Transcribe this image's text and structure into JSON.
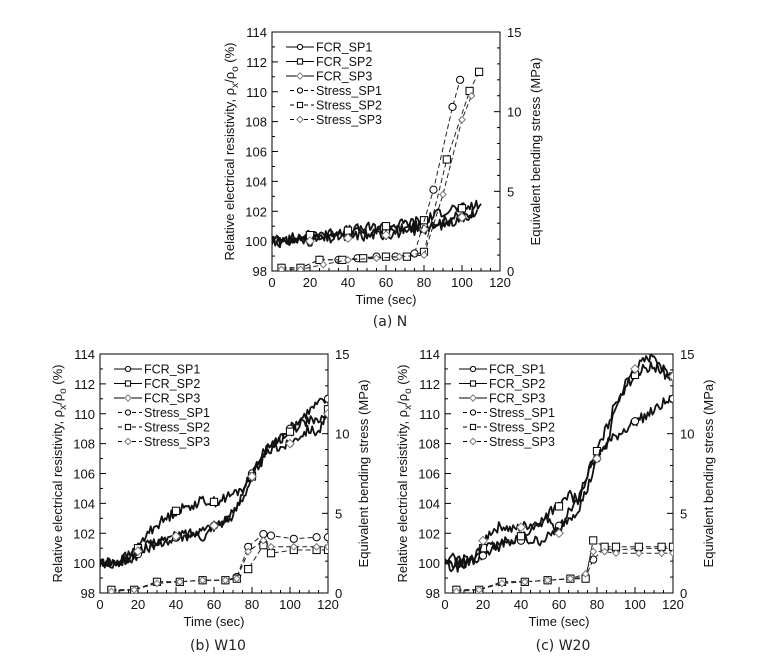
{
  "figure": {
    "x_label": "Time (sec)",
    "y_label_left_prefix": "Relative electrical resistivity, ",
    "y_label_left_rho": "ρ",
    "y_label_left_sub_x": "x",
    "y_label_left_slash": "/",
    "y_label_left_sub_o": "o",
    "y_label_left_suffix": " (%)",
    "y_label_right": "Equivalent bending stress (MPa)",
    "legend": [
      "FCR_SP1",
      "FCR_SP2",
      "FCR_SP3",
      "Stress_SP1",
      "Stress_SP2",
      "Stress_SP3"
    ],
    "colors": {
      "fcr_line": "#111111",
      "stress_line": "#222222",
      "sp3_marker": "#777777"
    }
  },
  "chart_data": [
    {
      "type": "line",
      "caption": "(a)  N",
      "xlabel": "Time (sec)",
      "ylabel": "Relative electrical resistivity, ρx/ρo (%)",
      "ylabel_right": "Equivalent bending stress (MPa)",
      "xlim": [
        0,
        120
      ],
      "ylim": [
        98,
        114
      ],
      "ylim_right": [
        0,
        15
      ],
      "xticks": [
        0,
        20,
        40,
        60,
        80,
        100,
        120
      ],
      "yticks": [
        98,
        100,
        102,
        104,
        106,
        108,
        110,
        112,
        114
      ],
      "yticks_right": [
        0,
        5,
        10,
        15
      ],
      "legend_position": "top-left",
      "series": [
        {
          "name": "FCR_SP1",
          "axis": "left",
          "x": [
            0,
            5,
            10,
            15,
            20,
            25,
            30,
            35,
            40,
            45,
            50,
            55,
            60,
            65,
            70,
            75,
            80,
            85,
            90,
            95,
            100,
            105,
            108
          ],
          "y": [
            100,
            100,
            100.1,
            100.2,
            100.1,
            100.4,
            100.3,
            100.5,
            100.4,
            100.6,
            100.5,
            100.7,
            100.6,
            100.8,
            100.8,
            101.0,
            101.0,
            101.2,
            101.3,
            101.6,
            101.6,
            101.9,
            102.1
          ]
        },
        {
          "name": "FCR_SP2",
          "axis": "left",
          "x": [
            0,
            5,
            10,
            15,
            20,
            25,
            30,
            35,
            40,
            45,
            50,
            55,
            60,
            65,
            70,
            75,
            80,
            85,
            90,
            95,
            100,
            105,
            110
          ],
          "y": [
            100,
            100.2,
            100.2,
            100.3,
            100.4,
            100.6,
            100.5,
            100.7,
            100.7,
            100.8,
            100.9,
            100.9,
            101.0,
            101.1,
            101.2,
            101.3,
            101.4,
            101.7,
            102.0,
            102.2,
            102.2,
            102.3,
            102.5
          ]
        },
        {
          "name": "FCR_SP3",
          "axis": "left",
          "x": [
            0,
            5,
            10,
            15,
            20,
            25,
            30,
            35,
            40,
            45,
            50,
            55,
            60,
            65,
            70,
            75,
            80,
            85,
            90,
            95,
            100,
            105
          ],
          "y": [
            100,
            99.9,
            100.0,
            100.1,
            100.0,
            100.2,
            100.1,
            100.3,
            100.2,
            100.4,
            100.3,
            100.5,
            100.4,
            100.6,
            100.5,
            100.7,
            100.8,
            101.0,
            101.1,
            101.3,
            101.6,
            101.8
          ]
        },
        {
          "name": "Stress_SP1",
          "axis": "right",
          "x": [
            5,
            15,
            25,
            35,
            45,
            55,
            65,
            75,
            85,
            95,
            99
          ],
          "y": [
            0.2,
            0.2,
            0.7,
            0.7,
            0.8,
            0.9,
            0.9,
            1.1,
            5.1,
            10.3,
            12.0
          ]
        },
        {
          "name": "Stress_SP2",
          "axis": "right",
          "x": [
            5,
            15,
            25,
            37,
            48,
            60,
            71,
            80,
            92,
            104,
            109
          ],
          "y": [
            0.2,
            0.2,
            0.7,
            0.7,
            0.8,
            0.9,
            0.9,
            1.2,
            7.0,
            11.3,
            12.5
          ]
        },
        {
          "name": "Stress_SP3",
          "axis": "right",
          "x": [
            5,
            15,
            27,
            40,
            55,
            67,
            80,
            90,
            100,
            105
          ],
          "y": [
            0.1,
            0.1,
            0.4,
            0.7,
            0.8,
            0.9,
            1.0,
            4.8,
            9.5,
            11.0
          ]
        }
      ]
    },
    {
      "type": "line",
      "caption": "(b)  W10",
      "xlabel": "Time (sec)",
      "ylabel": "Relative electrical resistivity, ρx/ρo (%)",
      "ylabel_right": "Equivalent bending stress (MPa)",
      "xlim": [
        0,
        120
      ],
      "ylim": [
        98,
        114
      ],
      "ylim_right": [
        0,
        15
      ],
      "xticks": [
        0,
        20,
        40,
        60,
        80,
        100,
        120
      ],
      "yticks": [
        98,
        100,
        102,
        104,
        106,
        108,
        110,
        112,
        114
      ],
      "yticks_right": [
        0,
        5,
        10,
        15
      ],
      "legend_position": "top-left",
      "series": [
        {
          "name": "FCR_SP1",
          "axis": "left",
          "x": [
            0,
            5,
            10,
            15,
            20,
            25,
            30,
            35,
            40,
            45,
            50,
            55,
            60,
            65,
            70,
            75,
            80,
            85,
            90,
            95,
            100,
            105,
            110,
            115,
            120
          ],
          "y": [
            100,
            100.1,
            100.0,
            100.2,
            100.6,
            101.0,
            101.4,
            101.5,
            101.7,
            101.8,
            102.0,
            102.2,
            102.5,
            102.6,
            103.2,
            104.8,
            106.0,
            107.2,
            108.0,
            108.4,
            109.0,
            109.6,
            110.2,
            110.7,
            111.0
          ]
        },
        {
          "name": "FCR_SP2",
          "axis": "left",
          "x": [
            0,
            5,
            10,
            15,
            20,
            25,
            30,
            35,
            40,
            45,
            50,
            55,
            60,
            65,
            70,
            75,
            80,
            85,
            90,
            95,
            100,
            105,
            110,
            115,
            120
          ],
          "y": [
            100,
            99.8,
            100.2,
            100.5,
            101.0,
            102.0,
            102.6,
            103.0,
            103.5,
            103.7,
            104.0,
            104.2,
            104.1,
            104.3,
            104.6,
            105.0,
            105.8,
            107.0,
            108.0,
            108.3,
            108.8,
            109.3,
            109.6,
            109.3,
            110.3
          ]
        },
        {
          "name": "FCR_SP3",
          "axis": "left",
          "x": [
            0,
            5,
            10,
            15,
            20,
            25,
            30,
            35,
            40,
            45,
            50,
            55,
            60,
            65,
            70,
            75,
            80,
            85,
            90,
            95,
            100,
            105,
            110,
            115,
            120
          ],
          "y": [
            100,
            100.0,
            100.1,
            100.3,
            100.8,
            101.2,
            101.3,
            101.6,
            101.8,
            102.0,
            102.0,
            101.8,
            102.5,
            102.9,
            103.3,
            104.4,
            105.8,
            106.8,
            107.6,
            107.8,
            108.0,
            108.6,
            109.0,
            108.8,
            110.0
          ]
        },
        {
          "name": "Stress_SP1",
          "axis": "right",
          "x": [
            6,
            18,
            30,
            42,
            54,
            66,
            72,
            78,
            86,
            90,
            102,
            114,
            120
          ],
          "y": [
            0.2,
            0.2,
            0.7,
            0.7,
            0.8,
            0.8,
            1.0,
            2.9,
            3.7,
            3.6,
            3.4,
            3.5,
            3.5
          ]
        },
        {
          "name": "Stress_SP2",
          "axis": "right",
          "x": [
            6,
            18,
            30,
            42,
            54,
            66,
            72,
            78,
            86,
            90,
            102,
            114,
            120
          ],
          "y": [
            0.2,
            0.2,
            0.7,
            0.7,
            0.8,
            0.8,
            0.9,
            1.5,
            3.0,
            2.5,
            2.7,
            2.7,
            2.7
          ]
        },
        {
          "name": "Stress_SP3",
          "axis": "right",
          "x": [
            6,
            18,
            30,
            42,
            54,
            66,
            72,
            78,
            86,
            90,
            102,
            114,
            120
          ],
          "y": [
            0.1,
            0.2,
            0.6,
            0.7,
            0.8,
            0.8,
            0.9,
            2.6,
            3.3,
            2.9,
            2.9,
            2.9,
            2.9
          ]
        }
      ]
    },
    {
      "type": "line",
      "caption": "(c)  W20",
      "xlabel": "Time (sec)",
      "ylabel": "Relative electrical resistivity, ρx/ρo (%)",
      "ylabel_right": "Equivalent bending stress (MPa)",
      "xlim": [
        0,
        120
      ],
      "ylim": [
        98,
        114
      ],
      "ylim_right": [
        0,
        15
      ],
      "xticks": [
        0,
        20,
        40,
        60,
        80,
        100,
        120
      ],
      "yticks": [
        98,
        100,
        102,
        104,
        106,
        108,
        110,
        112,
        114
      ],
      "yticks_right": [
        0,
        5,
        10,
        15
      ],
      "legend_position": "top-left",
      "series": [
        {
          "name": "FCR_SP1",
          "axis": "left",
          "x": [
            0,
            5,
            10,
            15,
            20,
            25,
            30,
            35,
            40,
            45,
            50,
            55,
            60,
            65,
            70,
            75,
            80,
            85,
            90,
            95,
            100,
            105,
            110,
            115,
            120
          ],
          "y": [
            100,
            100.0,
            100.0,
            100.2,
            100.5,
            101.0,
            101.2,
            101.4,
            101.5,
            101.5,
            101.5,
            101.8,
            102.5,
            103.0,
            103.6,
            105.0,
            107.0,
            108.0,
            108.5,
            109.0,
            109.5,
            109.8,
            110.2,
            110.7,
            111.0
          ]
        },
        {
          "name": "FCR_SP2",
          "axis": "left",
          "x": [
            0,
            5,
            10,
            15,
            20,
            25,
            30,
            35,
            40,
            45,
            50,
            55,
            60,
            65,
            70,
            75,
            80,
            85,
            90,
            95,
            100,
            105,
            110,
            115,
            120
          ],
          "y": [
            100,
            99.5,
            100.2,
            100.3,
            101.0,
            101.1,
            101.3,
            101.6,
            101.8,
            102.2,
            102.6,
            103.5,
            103.8,
            104.6,
            104.2,
            106.0,
            107.5,
            109.0,
            110.8,
            111.8,
            112.6,
            113.0,
            113.2,
            112.7,
            112.5
          ]
        },
        {
          "name": "FCR_SP3",
          "axis": "left",
          "x": [
            0,
            5,
            10,
            15,
            20,
            25,
            30,
            35,
            40,
            45,
            50,
            55,
            60,
            65,
            70,
            75,
            80,
            85,
            90,
            95,
            100,
            105,
            110,
            115,
            120
          ],
          "y": [
            100,
            100.4,
            100.0,
            100.1,
            101.5,
            102.2,
            102.5,
            102.2,
            102.4,
            102.6,
            102.8,
            103.0,
            102.0,
            103.5,
            104.0,
            106.0,
            107.0,
            107.8,
            110.5,
            112.0,
            113.0,
            113.5,
            114.0,
            113.0,
            112.5
          ]
        },
        {
          "name": "Stress_SP1",
          "axis": "right",
          "x": [
            6,
            18,
            30,
            42,
            54,
            66,
            74,
            78,
            84,
            90,
            102,
            114,
            120
          ],
          "y": [
            0.2,
            0.2,
            0.7,
            0.7,
            0.8,
            0.9,
            1.0,
            2.1,
            2.8,
            2.7,
            2.8,
            2.8,
            2.8
          ]
        },
        {
          "name": "Stress_SP2",
          "axis": "right",
          "x": [
            6,
            18,
            30,
            42,
            54,
            66,
            74,
            78,
            84,
            90,
            102,
            114,
            120
          ],
          "y": [
            0.2,
            0.2,
            0.7,
            0.7,
            0.8,
            0.9,
            0.9,
            3.3,
            2.9,
            2.9,
            2.9,
            2.9,
            2.9
          ]
        },
        {
          "name": "Stress_SP3",
          "axis": "right",
          "x": [
            6,
            18,
            30,
            42,
            54,
            66,
            74,
            78,
            84,
            90,
            102,
            114,
            120
          ],
          "y": [
            0.1,
            0.2,
            0.6,
            0.7,
            0.8,
            0.9,
            1.2,
            2.6,
            2.6,
            2.5,
            2.5,
            2.5,
            2.5
          ]
        }
      ]
    }
  ]
}
